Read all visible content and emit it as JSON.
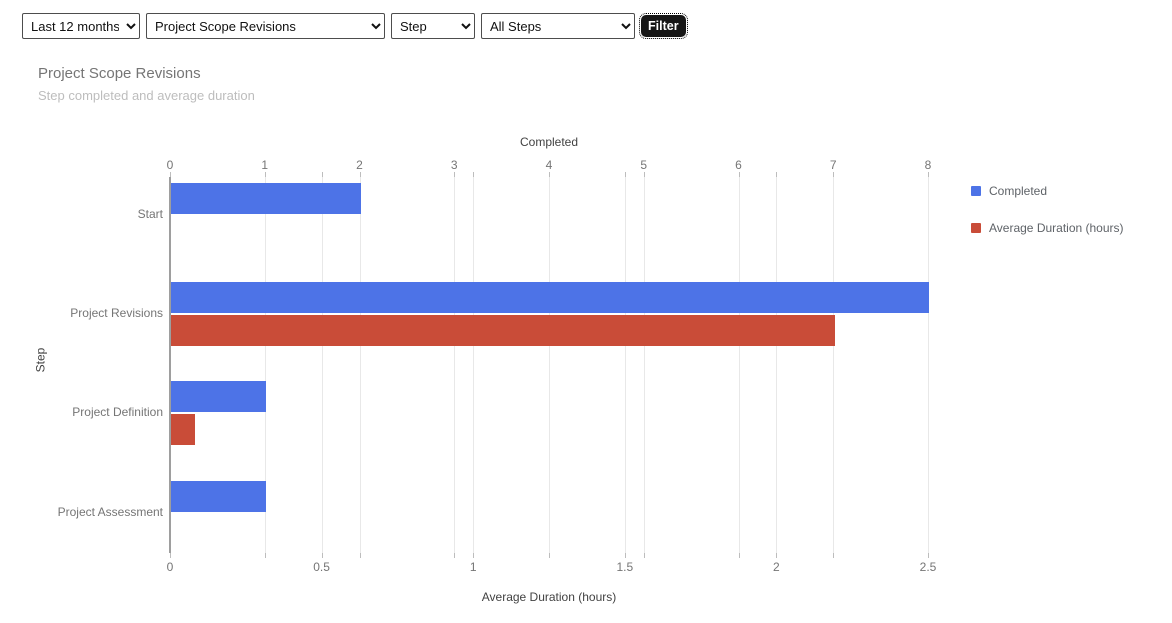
{
  "toolbar": {
    "selects": [
      {
        "name": "date-range",
        "value": "Last 12 months"
      },
      {
        "name": "report",
        "value": "Project Scope Revisions"
      },
      {
        "name": "dimension",
        "value": "Step"
      },
      {
        "name": "step-filter",
        "value": "All Steps"
      }
    ],
    "filter_label": "Filter"
  },
  "chart": {
    "title": "Project Scope Revisions",
    "subtitle": "Step completed and average duration"
  },
  "chart_data": {
    "type": "bar",
    "orientation": "horizontal",
    "title": "Project Scope Revisions",
    "subtitle": "Step completed and average duration",
    "categories": [
      "Start",
      "Project Revisions",
      "Project Definition",
      "Project Assessment"
    ],
    "series": [
      {
        "name": "Completed",
        "color": "#4d73e7",
        "axis": "top",
        "values": [
          2,
          8,
          1,
          1
        ]
      },
      {
        "name": "Average Duration (hours)",
        "color": "#c94c38",
        "axis": "bottom",
        "values": [
          0,
          2.19,
          0.08,
          0
        ]
      }
    ],
    "axes": {
      "top": {
        "title": "Completed",
        "ticks": [
          0,
          1,
          2,
          3,
          4,
          5,
          6,
          7,
          8
        ],
        "range": [
          0,
          8
        ]
      },
      "bottom": {
        "title": "Average Duration (hours)",
        "ticks": [
          0,
          0.5,
          1,
          1.5,
          2,
          2.5
        ],
        "range": [
          0,
          2.5
        ]
      },
      "left": {
        "title": "Step"
      }
    },
    "legend_position": "right",
    "grid": true
  }
}
